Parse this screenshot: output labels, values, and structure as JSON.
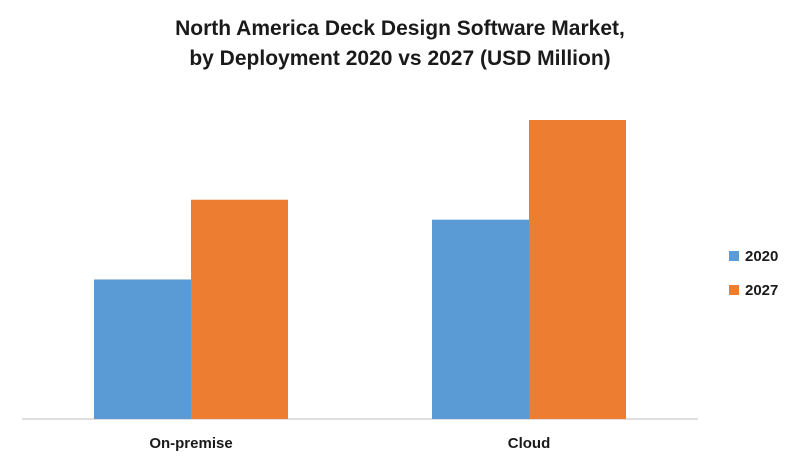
{
  "chart_data": {
    "type": "bar",
    "title": "North America Deck Design Software Market,",
    "subtitle": "by Deployment 2020 vs 2027 (USD Million)",
    "categories": [
      "On-premise",
      "Cloud"
    ],
    "series": [
      {
        "name": "2020",
        "values": [
          140,
          200
        ],
        "color": "#5B9BD5"
      },
      {
        "name": "2027",
        "values": [
          220,
          300
        ],
        "color": "#ED7D31"
      }
    ],
    "xlabel": "",
    "ylabel": "",
    "ylim": [
      0,
      320
    ],
    "grid": false,
    "legend": "right",
    "value_axis_shown": false
  }
}
